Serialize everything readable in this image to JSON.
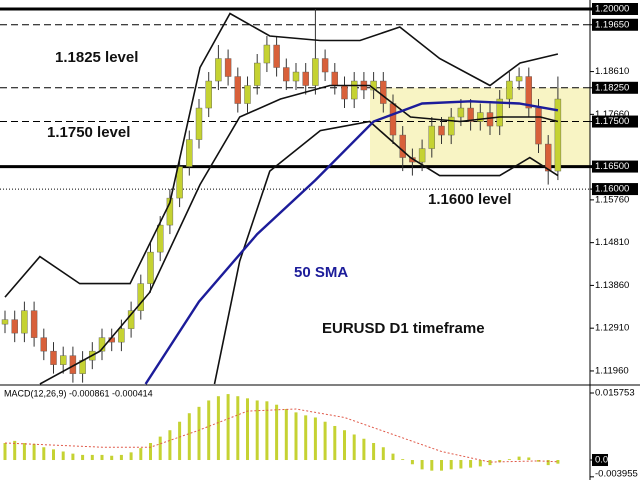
{
  "chart_data": [
    {
      "type": "candlestick",
      "open": [
        1.13,
        1.131,
        1.128,
        1.133,
        1.127,
        1.124,
        1.121,
        1.123,
        1.119,
        1.122,
        1.124,
        1.127,
        1.126,
        1.129,
        1.133,
        1.139,
        1.146,
        1.152,
        1.158,
        1.165,
        1.171,
        1.178,
        1.184,
        1.189,
        1.185,
        1.179,
        1.183,
        1.188,
        1.192,
        1.187,
        1.184,
        1.186,
        1.183,
        1.189,
        1.186,
        1.183,
        1.18,
        1.184,
        1.182,
        1.184,
        1.179,
        1.172,
        1.167,
        1.166,
        1.169,
        1.174,
        1.172,
        1.176,
        1.178,
        1.175,
        1.177,
        1.174,
        1.18,
        1.184,
        1.185,
        1.178,
        1.17,
        1.164
      ],
      "high": [
        1.133,
        1.133,
        1.135,
        1.135,
        1.129,
        1.126,
        1.125,
        1.125,
        1.124,
        1.126,
        1.129,
        1.129,
        1.131,
        1.135,
        1.141,
        1.148,
        1.154,
        1.16,
        1.167,
        1.173,
        1.18,
        1.186,
        1.192,
        1.191,
        1.187,
        1.185,
        1.19,
        1.194,
        1.194,
        1.189,
        1.188,
        1.188,
        1.2,
        1.191,
        1.188,
        1.185,
        1.186,
        1.186,
        1.186,
        1.186,
        1.181,
        1.174,
        1.169,
        1.171,
        1.176,
        1.176,
        1.178,
        1.18,
        1.18,
        1.179,
        1.179,
        1.182,
        1.186,
        1.187,
        1.187,
        1.18,
        1.172,
        1.185
      ],
      "low": [
        1.128,
        1.126,
        1.126,
        1.125,
        1.122,
        1.119,
        1.119,
        1.117,
        1.117,
        1.12,
        1.122,
        1.124,
        1.124,
        1.127,
        1.131,
        1.137,
        1.144,
        1.15,
        1.156,
        1.163,
        1.169,
        1.176,
        1.182,
        1.183,
        1.177,
        1.177,
        1.181,
        1.186,
        1.185,
        1.182,
        1.182,
        1.181,
        1.181,
        1.184,
        1.181,
        1.178,
        1.178,
        1.18,
        1.18,
        1.177,
        1.17,
        1.164,
        1.163,
        1.164,
        1.167,
        1.17,
        1.17,
        1.174,
        1.173,
        1.173,
        1.172,
        1.172,
        1.178,
        1.182,
        1.176,
        1.168,
        1.161,
        1.162
      ],
      "close": [
        1.131,
        1.128,
        1.133,
        1.127,
        1.124,
        1.121,
        1.123,
        1.119,
        1.122,
        1.124,
        1.127,
        1.126,
        1.129,
        1.133,
        1.139,
        1.146,
        1.152,
        1.158,
        1.165,
        1.171,
        1.178,
        1.184,
        1.189,
        1.185,
        1.179,
        1.183,
        1.188,
        1.192,
        1.187,
        1.184,
        1.186,
        1.183,
        1.189,
        1.186,
        1.183,
        1.18,
        1.184,
        1.182,
        1.184,
        1.179,
        1.172,
        1.167,
        1.166,
        1.169,
        1.174,
        1.172,
        1.176,
        1.178,
        1.175,
        1.177,
        1.174,
        1.18,
        1.184,
        1.185,
        1.178,
        1.17,
        1.164,
        1.18
      ],
      "up_color": "#c5d232",
      "down_color": "#d8603a",
      "lines": [
        {
          "color": "#111111",
          "x": [
            0,
            3.6,
            7.7,
            12.9,
            17,
            20.1,
            23.2,
            27.3,
            32.5,
            36.6,
            40.7,
            44.8,
            50,
            53.1,
            57
          ],
          "values": [
            1.136,
            1.145,
            1.139,
            1.139,
            1.157,
            1.187,
            1.199,
            1.194,
            1.193,
            1.193,
            1.196,
            1.189,
            1.183,
            1.188,
            1.19
          ]
        },
        {
          "color": "#111111",
          "x": [
            3.6,
            9.8,
            14.9,
            20.1,
            24.2,
            28.4,
            33.5,
            37.6,
            41.8,
            46.9,
            51,
            55.2,
            57
          ],
          "values": [
            1.1167,
            1.124,
            1.137,
            1.161,
            1.176,
            1.18,
            1.183,
            1.183,
            1.176,
            1.175,
            1.176,
            1.176,
            1.175
          ]
        },
        {
          "color": "#111111",
          "x": [
            21.6,
            24.2,
            27.3,
            32.5,
            37.6,
            41.8,
            44.8,
            51,
            54.1,
            57
          ],
          "values": [
            1.1167,
            1.144,
            1.164,
            1.173,
            1.175,
            1.167,
            1.163,
            1.163,
            1.167,
            1.163
          ]
        },
        {
          "color": "#1c1c9a",
          "x": [
            14.5,
            20,
            26,
            32,
            38,
            43,
            48,
            53,
            57
          ],
          "values": [
            1.1167,
            1.135,
            1.15,
            1.162,
            1.175,
            1.179,
            1.1795,
            1.179,
            1.1775
          ]
        }
      ],
      "zone": {
        "from": 1.165,
        "to": 1.1825,
        "color": "#f8f4c4"
      },
      "levels": [
        {
          "value": 1.2,
          "style": "thick"
        },
        {
          "value": 1.1965,
          "style": "dashed"
        },
        {
          "value": 1.1825,
          "style": "dashed"
        },
        {
          "value": 1.175,
          "style": "dashed"
        },
        {
          "value": 1.165,
          "style": "thick"
        },
        {
          "value": 1.16,
          "style": "dotted"
        }
      ],
      "ylim": [
        1.1167,
        1.202
      ],
      "yticks": [
        {
          "value": 1.2,
          "label": "1.20000"
        },
        {
          "value": 1.1965,
          "label": "1.19650"
        },
        {
          "value": 1.1861,
          "label": "1.18610"
        },
        {
          "value": 1.1825,
          "label": "1.18250"
        },
        {
          "value": 1.1766,
          "label": "1.17660"
        },
        {
          "value": 1.175,
          "label": "1.17500"
        },
        {
          "value": 1.165,
          "label": "1.16500"
        },
        {
          "value": 1.16,
          "label": "1.16000"
        },
        {
          "value": 1.1576,
          "label": "1.15760"
        },
        {
          "value": 1.1481,
          "label": "1.14810"
        },
        {
          "value": 1.1386,
          "label": "1.13860"
        },
        {
          "value": 1.1291,
          "label": "1.12910"
        },
        {
          "value": 1.1196,
          "label": "1.11960"
        }
      ],
      "annotations": [
        "1.1825 level",
        "1.1750 level",
        "1.1600 level",
        "50 SMA",
        "EURUSD D1 timeframe"
      ]
    },
    {
      "type": "macd",
      "title": "MACD(12,26,9) -0.000861 -0.000414",
      "values": [
        0.004,
        0.0045,
        0.004,
        0.0038,
        0.003,
        0.0025,
        0.002,
        0.0015,
        0.0012,
        0.0012,
        0.0012,
        0.001,
        0.0012,
        0.0018,
        0.0028,
        0.004,
        0.0055,
        0.007,
        0.009,
        0.011,
        0.0125,
        0.014,
        0.015,
        0.0155,
        0.015,
        0.0145,
        0.014,
        0.0138,
        0.013,
        0.012,
        0.0112,
        0.0105,
        0.01,
        0.009,
        0.008,
        0.007,
        0.006,
        0.005,
        0.004,
        0.003,
        0.0015,
        0.0002,
        -0.001,
        -0.0022,
        -0.0025,
        -0.0025,
        -0.0022,
        -0.002,
        -0.0018,
        -0.0015,
        -0.0012,
        -0.0005,
        0.0002,
        0.0008,
        0.0006,
        -0.0004,
        -0.0012,
        -0.000861
      ],
      "color": "#c5d232",
      "signal": {
        "color": "#e05a4a",
        "x": [
          0,
          10,
          15,
          20,
          25,
          30,
          35,
          40,
          45,
          50,
          55,
          57
        ],
        "values": [
          0.004,
          0.003,
          0.003,
          0.007,
          0.0115,
          0.012,
          0.01,
          0.006,
          0.002,
          -0.0005,
          -0.0002,
          -0.000414
        ]
      },
      "ylim": [
        -0.0047,
        0.0174
      ],
      "yticks": [
        0.015753,
        {
          "value": 0,
          "label": "0.00"
        },
        -0.003955
      ]
    }
  ]
}
